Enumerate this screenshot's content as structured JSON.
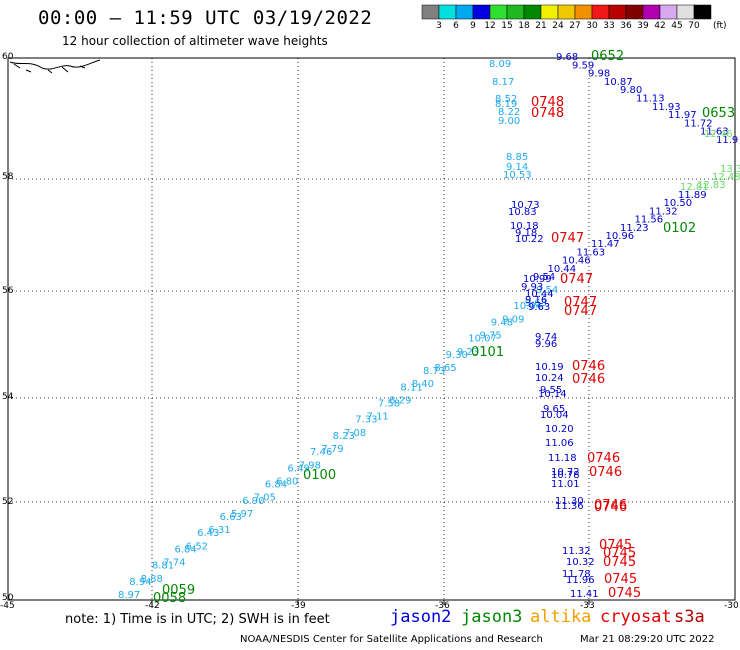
{
  "header": {
    "title": "00:00 — 11:59 UTC 03/19/2022",
    "subtitle": "12 hour collection of altimeter wave heights"
  },
  "color_scale": {
    "labels": [
      "3",
      "6",
      "9",
      "12",
      "15",
      "18",
      "21",
      "24",
      "27",
      "30",
      "33",
      "36",
      "39",
      "42",
      "45",
      "70"
    ],
    "colors": [
      "#808080",
      "#00e0e0",
      "#00a8f0",
      "#0000e0",
      "#30e030",
      "#20b820",
      "#008800",
      "#f0f000",
      "#f0c800",
      "#f09000",
      "#f01818",
      "#b80000",
      "#800000",
      "#b000b0",
      "#d8a8f0",
      "#e0e0e0",
      "#000000"
    ],
    "unit": "(ft)"
  },
  "axes": {
    "lat_labels": [
      "60",
      "58",
      "56",
      "54",
      "52",
      "50"
    ],
    "lon_labels": [
      "-45",
      "-42",
      "-39",
      "-36",
      "-33",
      "-30"
    ]
  },
  "footer": {
    "note": "note: 1) Time is in UTC; 2) SWH is in feet",
    "legend": [
      {
        "name": "jason2",
        "color": "#0000dd"
      },
      {
        "name": "jason3",
        "color": "#008800"
      },
      {
        "name": "altika",
        "color": "#f0a000"
      },
      {
        "name": "cryosat",
        "color": "#e00000"
      },
      {
        "name": "s3a",
        "color": "#b00000"
      }
    ],
    "credit": "NOAA/NESDIS Center for Satellite Applications and Research",
    "timestamp": "Mar 21 08:29:20 UTC 2022"
  },
  "tracks": {
    "cyan_diag": [
      "8.97",
      "8.94",
      "8.88",
      "8.81",
      "7.74",
      "6.84",
      "6.52",
      "6.43",
      "6.31",
      "6.63",
      "5.97",
      "6.90",
      "7.05",
      "6.84",
      "6.80",
      "6.49",
      "7.98",
      "7.46",
      "7.79",
      "8.23",
      "7.08",
      "7.33",
      "7.11",
      "7.58",
      "8.29",
      "8.11",
      "8.40",
      "8.73",
      "8.65",
      "9.30",
      "9.23",
      "10.07",
      "9.75",
      "9.48",
      "9.09",
      "10.04",
      "9.63",
      "9.54",
      "8.09",
      "8.17",
      "8.52",
      "8.19",
      "8.22",
      "9.00",
      "8.85",
      "9.14",
      "10.53",
      "10.69"
    ],
    "blue_upper": [
      "9.68",
      "9.59",
      "9.98",
      "10.87",
      "9.80",
      "11.13",
      "11.93",
      "11.97",
      "11.72",
      "11.63",
      "11.9"
    ],
    "blue_mid": [
      "11.89",
      "10.50",
      "11.32",
      "11.56",
      "11.23",
      "10.96",
      "11.47",
      "11.63",
      "10.46",
      "10.44",
      "9.54",
      "10.99",
      "9.93",
      "10.44",
      "9.16",
      "9.63",
      "10.73",
      "10.83",
      "10.18",
      "9.18",
      "10.22"
    ],
    "blue_lower": [
      "9.74",
      "9.96",
      "10.19",
      "10.24",
      "9.55",
      "10.14",
      "9.65",
      "10.04",
      "10.20",
      "11.06",
      "11.18",
      "10.72",
      "10.78",
      "11.01",
      "11.30",
      "11.36",
      "11.78",
      "11.32",
      "10.32",
      "11.96",
      "11.41"
    ],
    "green_tr": [
      "13.3",
      "12.48",
      "12.83",
      "12.81",
      "12.46"
    ],
    "times_red": [
      "0748",
      "0748",
      "0747",
      "0747",
      "0747",
      "0747",
      "0746",
      "0746",
      "0746",
      "0746",
      "0746",
      "0746",
      "0745",
      "0745",
      "0745",
      "0745",
      "0745"
    ],
    "times_green": [
      "0652",
      "0653",
      "0102",
      "0101",
      "0100",
      "0059",
      "0058"
    ]
  }
}
